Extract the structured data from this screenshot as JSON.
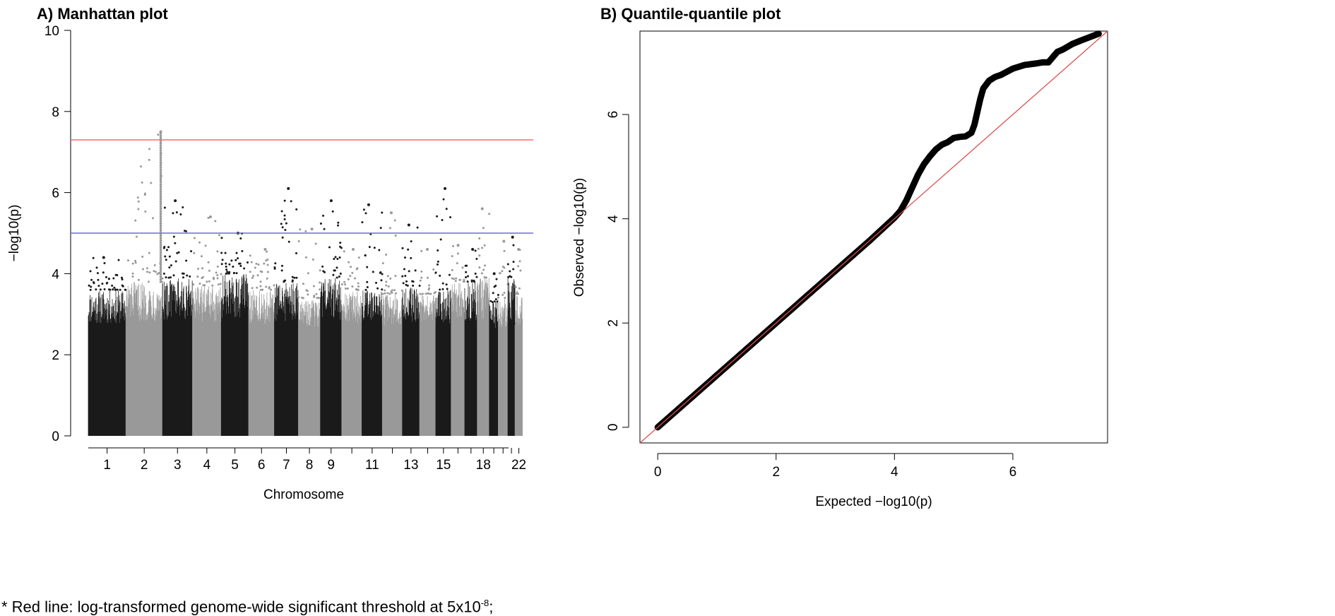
{
  "panels": {
    "a_title": "A)  Manhattan plot",
    "b_title": "B)  Quantile-quantile plot"
  },
  "footnote": {
    "text_before": "* Red line: log-transformed genome-wide significant threshold at 5x10",
    "superscript": "-8",
    "text_after": ";"
  },
  "chart_data": [
    {
      "type": "scatter",
      "subtype": "manhattan",
      "title": "Manhattan plot",
      "xlabel": "Chromosome",
      "ylabel": "−log10(p)",
      "ylim": [
        0,
        10
      ],
      "y_ticks": [
        0,
        2,
        4,
        6,
        8,
        10
      ],
      "x_tick_labels": [
        "1",
        "2",
        "3",
        "4",
        "5",
        "6",
        "7",
        "8",
        "9",
        "11",
        "13",
        "15",
        "18",
        "22"
      ],
      "chromosomes": [
        "1",
        "2",
        "3",
        "4",
        "5",
        "6",
        "7",
        "8",
        "9",
        "10",
        "11",
        "12",
        "13",
        "14",
        "15",
        "16",
        "17",
        "18",
        "19",
        "20",
        "21",
        "22"
      ],
      "colors": {
        "odd": "#1a1a1a",
        "even": "#999999",
        "red_line": "#e8706c",
        "blue_line": "#6b6bdb"
      },
      "significance_line": 7.3,
      "suggestive_line": 5.0,
      "chromosome_max": [
        4.4,
        7.5,
        5.8,
        5.4,
        5.0,
        4.6,
        6.1,
        5.1,
        5.8,
        4.6,
        5.7,
        5.5,
        5.2,
        4.6,
        6.1,
        4.7,
        4.6,
        5.6,
        4.0,
        4.8,
        4.9,
        4.6
      ],
      "chromosome_peak_height": [
        3.6,
        3.8,
        3.9,
        3.7,
        4.0,
        3.6,
        3.8,
        3.4,
        3.9,
        3.6,
        3.6,
        3.5,
        3.7,
        3.5,
        3.6,
        3.8,
        3.8,
        3.9,
        3.3,
        3.4,
        3.9,
        3.5
      ]
    },
    {
      "type": "scatter",
      "subtype": "qq",
      "title": "Quantile-quantile plot",
      "xlabel": "Expected  −log10(p)",
      "ylabel": "Observed  −log10(p)",
      "x_ticks": [
        0,
        2,
        4,
        6
      ],
      "y_ticks": [
        0,
        2,
        4,
        6
      ],
      "xlim": [
        -0.3,
        7.6
      ],
      "ylim": [
        -0.3,
        7.6
      ],
      "diagonal_color": "#d9534f",
      "point_color": "#000000",
      "points": [
        [
          0,
          0
        ],
        [
          4.0,
          4.02
        ],
        [
          4.1,
          4.15
        ],
        [
          4.2,
          4.35
        ],
        [
          4.3,
          4.6
        ],
        [
          4.4,
          4.85
        ],
        [
          4.5,
          5.05
        ],
        [
          4.6,
          5.2
        ],
        [
          4.7,
          5.33
        ],
        [
          4.8,
          5.42
        ],
        [
          4.9,
          5.47
        ],
        [
          5.0,
          5.55
        ],
        [
          5.1,
          5.57
        ],
        [
          5.2,
          5.58
        ],
        [
          5.3,
          5.65
        ],
        [
          5.35,
          5.8
        ],
        [
          5.4,
          6.05
        ],
        [
          5.45,
          6.3
        ],
        [
          5.5,
          6.5
        ],
        [
          5.6,
          6.65
        ],
        [
          5.7,
          6.72
        ],
        [
          5.8,
          6.76
        ],
        [
          5.9,
          6.82
        ],
        [
          6.0,
          6.88
        ],
        [
          6.2,
          6.95
        ],
        [
          6.4,
          6.98
        ],
        [
          6.5,
          7.0
        ],
        [
          6.6,
          7.0
        ],
        [
          6.75,
          7.2
        ],
        [
          6.85,
          7.25
        ],
        [
          7.0,
          7.35
        ],
        [
          7.15,
          7.42
        ],
        [
          7.45,
          7.55
        ]
      ]
    }
  ]
}
